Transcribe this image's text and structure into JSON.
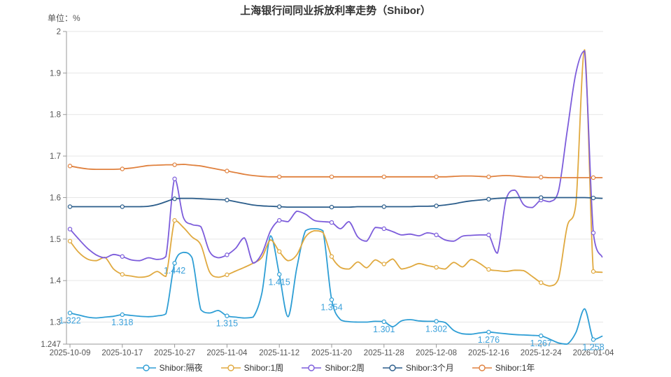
{
  "title": "上海银行间同业拆放利率走势（Shibor）",
  "unit_label": "单位：%",
  "chart_data": {
    "type": "line",
    "smooth": true,
    "grid": true,
    "legend_position": "bottom",
    "ylim": [
      1.247,
      2
    ],
    "y_ticks": [
      "2",
      "1.9",
      "1.8",
      "1.7",
      "1.6",
      "1.5",
      "1.4",
      "1.3",
      "1.247"
    ],
    "y_tick_values": [
      2,
      1.9,
      1.8,
      1.7,
      1.6,
      1.5,
      1.4,
      1.3,
      1.247
    ],
    "x_tick_labels": [
      "2025-10-09",
      "2025-10-17",
      "2025-10-27",
      "2025-11-04",
      "2025-11-12",
      "2025-11-20",
      "2025-11-28",
      "2025-12-08",
      "2025-12-16",
      "2025-12-24",
      "2026-01-04"
    ],
    "tick_indices": [
      0,
      6,
      12,
      18,
      24,
      30,
      36,
      42,
      48,
      54,
      60
    ],
    "colors": {
      "overnight": "#2E9ED5",
      "one_week": "#E0A93F",
      "two_week": "#7C5CDB",
      "three_month": "#2A5C8A",
      "one_year": "#E0813E",
      "grid": "#e6e6e6",
      "axis": "#999999",
      "tick_text": "#555555",
      "point_label": "#3BA1DB"
    },
    "series": [
      {
        "name": "Shibor:隔夜",
        "color": "#2E9ED5",
        "values": [
          1.322,
          1.317,
          1.312,
          1.31,
          1.312,
          1.314,
          1.318,
          1.316,
          1.314,
          1.313,
          1.315,
          1.32,
          1.442,
          1.468,
          1.455,
          1.33,
          1.322,
          1.328,
          1.315,
          1.312,
          1.31,
          1.312,
          1.37,
          1.508,
          1.415,
          1.313,
          1.43,
          1.52,
          1.525,
          1.52,
          1.354,
          1.306,
          1.301,
          1.3,
          1.3,
          1.302,
          1.301,
          1.289,
          1.303,
          1.306,
          1.303,
          1.302,
          1.302,
          1.299,
          1.28,
          1.272,
          1.271,
          1.274,
          1.276,
          1.274,
          1.272,
          1.27,
          1.269,
          1.268,
          1.267,
          1.259,
          1.25,
          1.247,
          1.275,
          1.332,
          1.258,
          1.266
        ],
        "point_labels": [
          "1.322",
          "1.318",
          "1.442",
          "1.315",
          "1.415",
          "1.354",
          "1.301",
          "1.302",
          "1.276",
          "1.267",
          "1.258"
        ]
      },
      {
        "name": "Shibor:1周",
        "color": "#E0A93F",
        "values": [
          1.495,
          1.468,
          1.452,
          1.448,
          1.456,
          1.428,
          1.415,
          1.411,
          1.408,
          1.411,
          1.422,
          1.41,
          1.545,
          1.528,
          1.505,
          1.486,
          1.421,
          1.408,
          1.414,
          1.423,
          1.432,
          1.442,
          1.456,
          1.498,
          1.47,
          1.448,
          1.462,
          1.505,
          1.52,
          1.516,
          1.458,
          1.432,
          1.428,
          1.445,
          1.431,
          1.45,
          1.44,
          1.452,
          1.428,
          1.433,
          1.441,
          1.436,
          1.432,
          1.428,
          1.444,
          1.433,
          1.451,
          1.441,
          1.427,
          1.424,
          1.422,
          1.425,
          1.424,
          1.41,
          1.395,
          1.387,
          1.404,
          1.53,
          1.585,
          1.956,
          1.422,
          1.42
        ],
        "point_labels": []
      },
      {
        "name": "Shibor:2周",
        "color": "#7C5CDB",
        "values": [
          1.524,
          1.5,
          1.478,
          1.462,
          1.455,
          1.463,
          1.458,
          1.45,
          1.448,
          1.455,
          1.451,
          1.458,
          1.645,
          1.552,
          1.535,
          1.53,
          1.47,
          1.455,
          1.462,
          1.478,
          1.503,
          1.442,
          1.465,
          1.52,
          1.545,
          1.542,
          1.567,
          1.56,
          1.545,
          1.542,
          1.54,
          1.525,
          1.542,
          1.505,
          1.495,
          1.528,
          1.525,
          1.518,
          1.51,
          1.512,
          1.508,
          1.515,
          1.51,
          1.498,
          1.495,
          1.507,
          1.509,
          1.51,
          1.51,
          1.466,
          1.596,
          1.618,
          1.583,
          1.576,
          1.594,
          1.59,
          1.615,
          1.76,
          1.9,
          1.953,
          1.515,
          1.457
        ],
        "point_labels": []
      },
      {
        "name": "Shibor:3个月",
        "color": "#2A5C8A",
        "values": [
          1.578,
          1.578,
          1.578,
          1.578,
          1.578,
          1.578,
          1.578,
          1.578,
          1.578,
          1.579,
          1.583,
          1.59,
          1.597,
          1.598,
          1.598,
          1.597,
          1.596,
          1.595,
          1.594,
          1.59,
          1.586,
          1.582,
          1.58,
          1.579,
          1.578,
          1.577,
          1.577,
          1.577,
          1.577,
          1.577,
          1.577,
          1.577,
          1.577,
          1.578,
          1.578,
          1.578,
          1.578,
          1.578,
          1.578,
          1.578,
          1.579,
          1.579,
          1.58,
          1.582,
          1.585,
          1.589,
          1.592,
          1.594,
          1.596,
          1.598,
          1.599,
          1.6,
          1.6,
          1.6,
          1.6,
          1.6,
          1.6,
          1.6,
          1.6,
          1.6,
          1.599,
          1.598
        ],
        "point_labels": []
      },
      {
        "name": "Shibor:1年",
        "color": "#E0813E",
        "values": [
          1.676,
          1.672,
          1.669,
          1.668,
          1.668,
          1.668,
          1.669,
          1.671,
          1.674,
          1.677,
          1.678,
          1.679,
          1.679,
          1.68,
          1.678,
          1.676,
          1.672,
          1.668,
          1.664,
          1.66,
          1.656,
          1.653,
          1.651,
          1.65,
          1.65,
          1.65,
          1.65,
          1.65,
          1.65,
          1.65,
          1.65,
          1.65,
          1.65,
          1.65,
          1.65,
          1.65,
          1.65,
          1.65,
          1.65,
          1.65,
          1.65,
          1.65,
          1.65,
          1.65,
          1.651,
          1.652,
          1.652,
          1.651,
          1.65,
          1.652,
          1.653,
          1.652,
          1.65,
          1.649,
          1.649,
          1.648,
          1.648,
          1.648,
          1.648,
          1.648,
          1.648,
          1.648
        ],
        "point_labels": []
      }
    ]
  }
}
